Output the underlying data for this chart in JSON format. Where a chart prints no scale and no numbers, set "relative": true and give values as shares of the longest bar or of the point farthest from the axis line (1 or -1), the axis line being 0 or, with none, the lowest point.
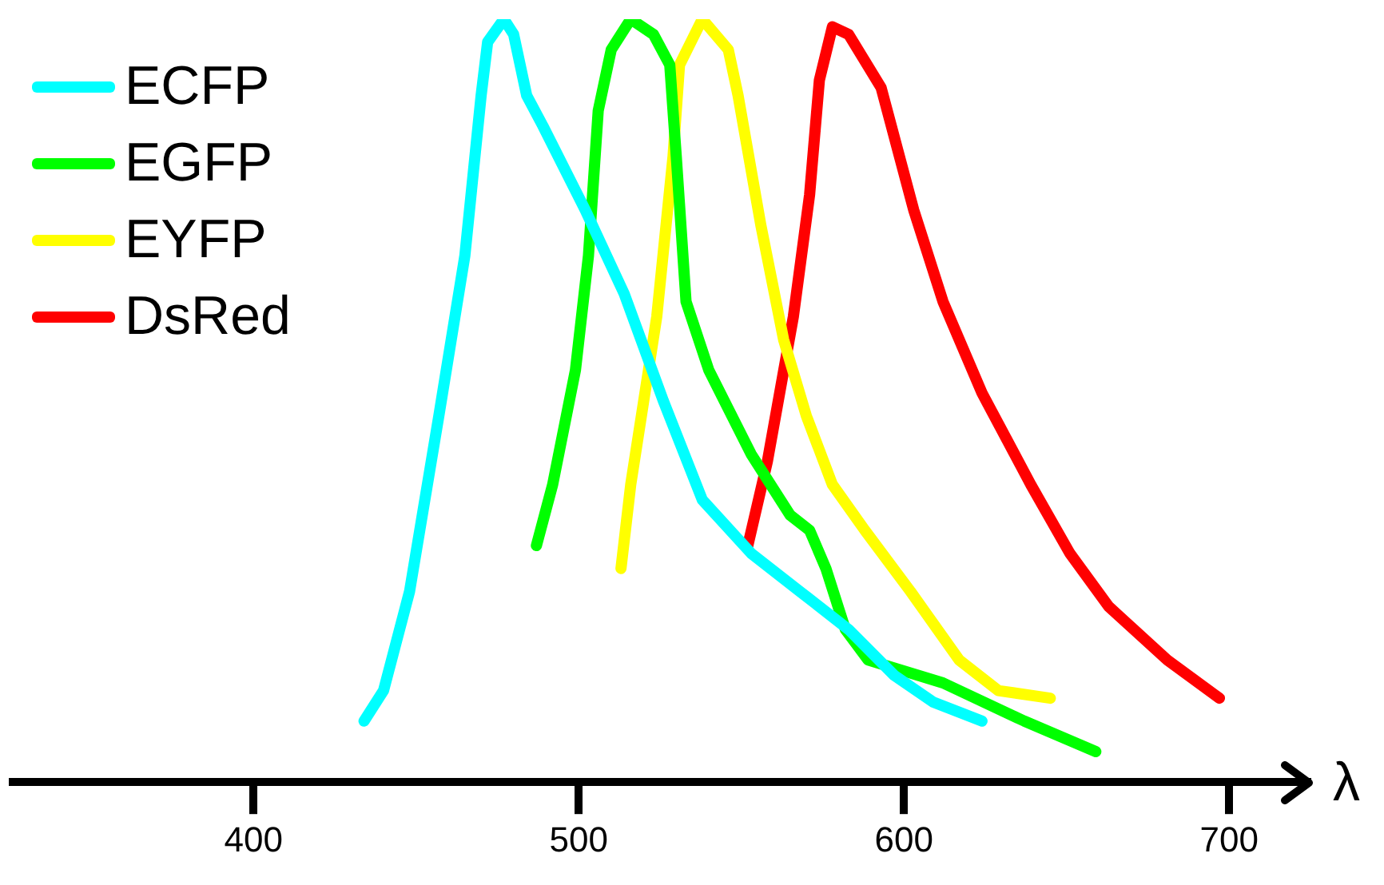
{
  "chart_data": {
    "type": "line",
    "relative": true,
    "xlabel": "λ",
    "xlim": [
      326,
      725
    ],
    "xticks": [
      400,
      500,
      600,
      700
    ],
    "legend": "top left",
    "marker": "none",
    "series": [
      {
        "name": "ECFP",
        "color": "#00ffff",
        "x": [
          434,
          440,
          448,
          457,
          465,
          470,
          472,
          477,
          480,
          484,
          489,
          502,
          514,
          526,
          538,
          553,
          568,
          583,
          597,
          609,
          624
        ],
        "values": [
          0.08,
          0.12,
          0.25,
          0.48,
          0.69,
          0.9,
          0.97,
          1.0,
          0.98,
          0.9,
          0.86,
          0.75,
          0.64,
          0.5,
          0.37,
          0.3,
          0.25,
          0.2,
          0.14,
          0.105,
          0.08
        ]
      },
      {
        "name": "EGFP",
        "color": "#00ff00",
        "x": [
          487,
          492,
          499,
          503,
          506,
          510,
          516,
          523,
          528,
          530,
          533,
          540,
          553,
          565,
          571,
          576,
          582,
          589,
          612,
          637,
          659
        ],
        "values": [
          0.31,
          0.39,
          0.54,
          0.69,
          0.88,
          0.96,
          1.0,
          0.98,
          0.94,
          0.82,
          0.63,
          0.54,
          0.43,
          0.35,
          0.33,
          0.28,
          0.2,
          0.16,
          0.13,
          0.08,
          0.04
        ]
      },
      {
        "name": "EYFP",
        "color": "#ffff00",
        "x": [
          513,
          516,
          524,
          529,
          531,
          538,
          546,
          549,
          556,
          563,
          570,
          578,
          588,
          602,
          617,
          629,
          645
        ],
        "values": [
          0.28,
          0.39,
          0.61,
          0.82,
          0.94,
          1.0,
          0.96,
          0.9,
          0.73,
          0.58,
          0.48,
          0.39,
          0.33,
          0.25,
          0.16,
          0.12,
          0.11
        ]
      },
      {
        "name": "DsRed",
        "color": "#ff0000",
        "x": [
          552,
          558,
          566,
          571,
          574,
          578,
          583,
          593,
          603,
          612,
          624,
          639,
          651,
          663,
          681,
          697
        ],
        "values": [
          0.31,
          0.42,
          0.61,
          0.77,
          0.92,
          0.99,
          0.98,
          0.91,
          0.75,
          0.63,
          0.51,
          0.39,
          0.3,
          0.23,
          0.16,
          0.11
        ]
      }
    ]
  }
}
